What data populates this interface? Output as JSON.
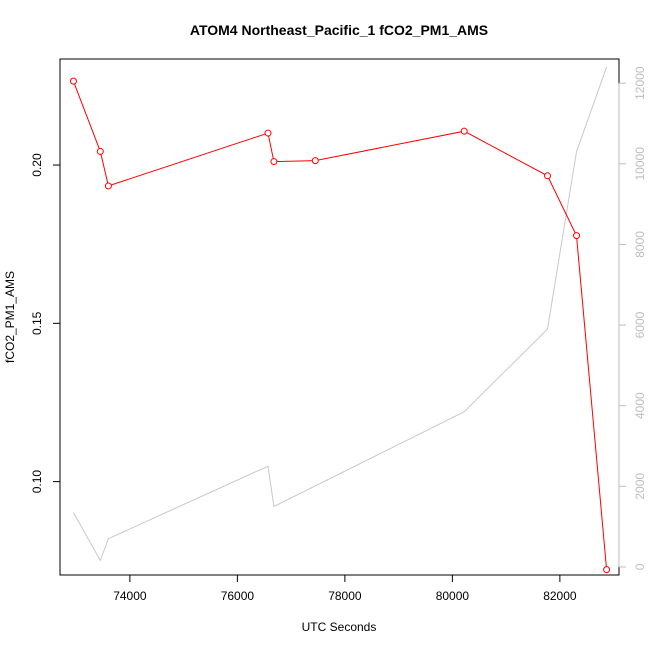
{
  "chart_data": {
    "type": "line",
    "title": "ATOM4 Northeast_Pacific_1 fCO2_PM1_AMS",
    "xlabel": "UTC Seconds",
    "ylabel": "fCO2_PM1_AMS",
    "xlim": [
      72700,
      83100
    ],
    "ylim": [
      0.0705,
      0.2335
    ],
    "y2lim": [
      -200,
      12600
    ],
    "x_ticks": [
      74000,
      76000,
      78000,
      80000,
      82000
    ],
    "y_ticks": [
      0.1,
      0.15,
      0.2
    ],
    "y_tick_labels": [
      "0.10",
      "0.15",
      "0.20"
    ],
    "y2_ticks": [
      0,
      2000,
      4000,
      6000,
      8000,
      10000,
      12000
    ],
    "grid": false,
    "series": [
      {
        "axis": "left",
        "color": "#ff0000",
        "markers": true,
        "x": [
          72950,
          73450,
          73600,
          76570,
          76680,
          77450,
          80220,
          81770,
          82310,
          82870
        ],
        "y": [
          0.2265,
          0.2043,
          0.1934,
          0.2101,
          0.2011,
          0.2014,
          0.2107,
          0.1966,
          0.1777,
          0.0722
        ]
      },
      {
        "axis": "right",
        "color": "#c8c8c8",
        "markers": false,
        "x": [
          72950,
          73450,
          73600,
          76570,
          76680,
          80220,
          81770,
          82310,
          82870
        ],
        "y": [
          1350,
          160,
          700,
          2500,
          1500,
          3850,
          5900,
          10300,
          12400
        ]
      }
    ]
  }
}
